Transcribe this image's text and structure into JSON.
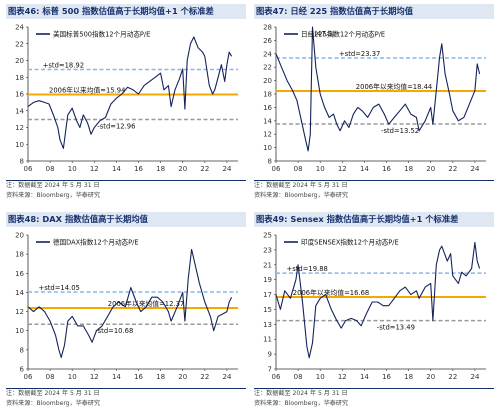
{
  "colors": {
    "series": "#14245a",
    "long_mean": "#f5a800",
    "plus_std": "#86b7e8",
    "minus_std": "#9a9a9a",
    "header_bg": "#dfe7f3",
    "header_text": "#17306d",
    "axis": "#333333"
  },
  "panels": [
    {
      "title": "图表46:  标普 500 指数估值高于长期均值+1 个标准差",
      "note": "注：数据截至 2024 年 5 月 31 日",
      "source": "资料来源：Bloomberg，华泰研究",
      "chart_data": {
        "type": "line",
        "legend": "美国标普500指数12个月动态P/E",
        "x_ticks": [
          "06",
          "08",
          "10",
          "12",
          "14",
          "16",
          "18",
          "20",
          "22",
          "24"
        ],
        "x_range": [
          2006,
          2025
        ],
        "ylim": [
          8,
          24
        ],
        "y_ticks": [
          8,
          10,
          12,
          14,
          16,
          18,
          20,
          22,
          24
        ],
        "reference_lines": [
          {
            "kind": "plus_std",
            "value": 18.92,
            "label": "+std=18.92"
          },
          {
            "kind": "long_mean",
            "value": 15.94,
            "label": "2006年以来均值=15.94"
          },
          {
            "kind": "minus_std",
            "value": 12.96,
            "label": "-std=12.96"
          }
        ],
        "annotations": [],
        "series": [
          {
            "x": [
              2006.0,
              2006.5,
              2007.0,
              2007.5,
              2007.9,
              2008.3,
              2008.7,
              2008.9,
              2009.2,
              2009.6,
              2010.0,
              2010.4,
              2010.7,
              2011.0,
              2011.4,
              2011.7,
              2012.0,
              2012.5,
              2013.0,
              2013.5,
              2014.0,
              2014.5,
              2015.0,
              2015.5,
              2016.0,
              2016.5,
              2017.0,
              2017.5,
              2018.0,
              2018.3,
              2018.7,
              2018.95,
              2019.3,
              2019.7,
              2020.0,
              2020.2,
              2020.4,
              2020.7,
              2021.0,
              2021.4,
              2021.8,
              2022.0,
              2022.4,
              2022.7,
              2022.9,
              2023.2,
              2023.5,
              2023.8,
              2024.0,
              2024.2,
              2024.42
            ],
            "y": [
              14.5,
              15.0,
              15.2,
              15.0,
              14.8,
              13.5,
              12.0,
              10.5,
              9.5,
              13.5,
              14.3,
              12.8,
              12.0,
              13.5,
              12.5,
              11.2,
              12.0,
              12.8,
              13.2,
              14.8,
              15.5,
              16.0,
              16.8,
              16.5,
              16.0,
              17.0,
              17.5,
              18.0,
              18.5,
              16.5,
              17.0,
              14.5,
              16.5,
              17.8,
              19.0,
              14.2,
              20.0,
              22.0,
              22.8,
              21.5,
              21.0,
              20.5,
              17.0,
              16.0,
              16.5,
              18.0,
              19.5,
              17.5,
              19.5,
              21.0,
              20.5
            ]
          }
        ]
      }
    },
    {
      "title": "图表47:  日经 225 指数估值高于长期均值",
      "note": "注：数据截至 2024 年 5 月 31 日",
      "source": "资料来源：Bloomberg，华泰研究",
      "chart_data": {
        "type": "line",
        "legend": "日经225指数12个月动态P/E",
        "x_ticks": [
          "06",
          "08",
          "10",
          "12",
          "14",
          "16",
          "18",
          "20",
          "22",
          "24"
        ],
        "x_range": [
          2006,
          2025
        ],
        "ylim": [
          8,
          28
        ],
        "y_ticks": [
          8,
          10,
          12,
          14,
          16,
          18,
          20,
          22,
          24,
          26,
          28
        ],
        "reference_lines": [
          {
            "kind": "plus_std",
            "value": 23.37,
            "label": "+std=23.37"
          },
          {
            "kind": "long_mean",
            "value": 18.44,
            "label": "2006年以来均值=18.44"
          },
          {
            "kind": "minus_std",
            "value": 13.52,
            "label": "-std=13.52"
          }
        ],
        "annotations": [
          {
            "text": "(47.3)",
            "x": 2009.2
          }
        ],
        "series": [
          {
            "x": [
              2006.0,
              2006.5,
              2007.0,
              2007.5,
              2007.9,
              2008.3,
              2008.7,
              2008.9,
              2009.1,
              2009.3,
              2009.6,
              2010.0,
              2010.4,
              2010.8,
              2011.2,
              2011.5,
              2011.8,
              2012.2,
              2012.6,
              2013.0,
              2013.4,
              2013.8,
              2014.3,
              2014.8,
              2015.3,
              2015.8,
              2016.2,
              2016.7,
              2017.2,
              2017.7,
              2018.2,
              2018.7,
              2018.95,
              2019.5,
              2020.0,
              2020.2,
              2020.5,
              2020.8,
              2021.0,
              2021.3,
              2021.7,
              2022.0,
              2022.5,
              2023.0,
              2023.5,
              2024.0,
              2024.2,
              2024.42
            ],
            "y": [
              24.0,
              22.0,
              20.0,
              18.5,
              17.0,
              14.0,
              11.0,
              9.5,
              12.0,
              28.0,
              22.0,
              18.0,
              16.0,
              14.5,
              15.0,
              13.5,
              12.5,
              14.0,
              13.0,
              15.0,
              16.0,
              15.5,
              14.5,
              16.0,
              16.5,
              15.0,
              13.5,
              14.5,
              15.5,
              16.5,
              15.0,
              14.5,
              12.5,
              14.0,
              16.0,
              13.5,
              18.5,
              23.5,
              25.5,
              21.0,
              18.0,
              15.5,
              14.0,
              14.5,
              16.5,
              18.5,
              22.5,
              21.0
            ]
          }
        ]
      }
    },
    {
      "title": "图表48:  DAX 指数估值高于长期均值",
      "note": "注：数据截至 2024 年 5 月 31 日",
      "source": "资料来源：Bloomberg，华泰研究",
      "chart_data": {
        "type": "line",
        "legend": "德国DAX指数12个月动态P/E",
        "x_ticks": [
          "06",
          "08",
          "10",
          "12",
          "14",
          "16",
          "18",
          "20",
          "22",
          "24"
        ],
        "x_range": [
          2006,
          2025
        ],
        "ylim": [
          6,
          20
        ],
        "y_ticks": [
          6,
          8,
          10,
          12,
          14,
          16,
          18,
          20
        ],
        "reference_lines": [
          {
            "kind": "plus_std",
            "value": 14.05,
            "label": "+std=14.05"
          },
          {
            "kind": "long_mean",
            "value": 12.37,
            "label": "2006年以来均值=12.37"
          },
          {
            "kind": "minus_std",
            "value": 10.68,
            "label": "-std=10.68"
          }
        ],
        "annotations": [],
        "series": [
          {
            "x": [
              2006.0,
              2006.5,
              2007.0,
              2007.5,
              2008.0,
              2008.5,
              2008.8,
              2009.0,
              2009.3,
              2009.6,
              2010.0,
              2010.5,
              2011.0,
              2011.5,
              2011.8,
              2012.2,
              2012.7,
              2013.2,
              2013.7,
              2014.2,
              2014.8,
              2015.3,
              2015.8,
              2016.2,
              2016.7,
              2017.2,
              2017.7,
              2018.2,
              2018.7,
              2018.95,
              2019.5,
              2020.0,
              2020.2,
              2020.5,
              2020.8,
              2021.0,
              2021.5,
              2022.0,
              2022.5,
              2022.8,
              2023.2,
              2023.7,
              2024.0,
              2024.2,
              2024.42
            ],
            "y": [
              12.5,
              12.0,
              12.5,
              12.0,
              11.0,
              9.5,
              8.0,
              7.2,
              8.5,
              11.0,
              11.5,
              10.5,
              10.5,
              9.5,
              8.8,
              10.0,
              10.5,
              11.5,
              12.5,
              13.0,
              12.5,
              14.5,
              13.0,
              12.0,
              12.5,
              13.5,
              13.5,
              13.0,
              12.0,
              11.0,
              12.5,
              14.0,
              11.0,
              15.5,
              18.5,
              17.5,
              15.0,
              13.0,
              11.5,
              10.0,
              11.5,
              11.8,
              12.0,
              13.0,
              13.5
            ]
          }
        ]
      }
    },
    {
      "title": "图表49:  Sensex 指数估值高于长期均值+1 个标准差",
      "note": "注：数据截至 2024 年 5 月 31 日",
      "source": "资料来源：Bloomberg，华泰研究",
      "chart_data": {
        "type": "line",
        "legend": "印度SENSEX指数12个月动态P/E",
        "x_ticks": [
          "06",
          "08",
          "10",
          "12",
          "14",
          "16",
          "18",
          "20",
          "22",
          "24"
        ],
        "x_range": [
          2006,
          2025
        ],
        "ylim": [
          7,
          25
        ],
        "y_ticks": [
          7,
          9,
          11,
          13,
          15,
          17,
          19,
          21,
          23,
          25
        ],
        "reference_lines": [
          {
            "kind": "plus_std",
            "value": 19.88,
            "label": "+std=19.88"
          },
          {
            "kind": "long_mean",
            "value": 16.68,
            "label": "2006年以来均值=16.68"
          },
          {
            "kind": "minus_std",
            "value": 13.49,
            "label": "-std=13.49"
          }
        ],
        "annotations": [],
        "series": [
          {
            "x": [
              2006.0,
              2006.4,
              2006.8,
              2007.3,
              2007.8,
              2008.0,
              2008.4,
              2008.8,
              2009.0,
              2009.3,
              2009.6,
              2010.0,
              2010.5,
              2011.0,
              2011.5,
              2011.9,
              2012.3,
              2012.8,
              2013.3,
              2013.7,
              2014.2,
              2014.7,
              2015.2,
              2015.7,
              2016.2,
              2016.7,
              2017.2,
              2017.7,
              2018.2,
              2018.7,
              2018.95,
              2019.5,
              2020.0,
              2020.2,
              2020.5,
              2020.8,
              2021.0,
              2021.5,
              2021.8,
              2022.0,
              2022.5,
              2022.8,
              2023.2,
              2023.7,
              2024.0,
              2024.2,
              2024.42
            ],
            "y": [
              17.0,
              15.0,
              17.5,
              16.5,
              19.0,
              21.0,
              16.0,
              10.0,
              8.5,
              10.5,
              15.5,
              16.5,
              17.0,
              15.0,
              13.5,
              12.5,
              13.5,
              13.8,
              13.5,
              12.8,
              14.5,
              16.0,
              16.0,
              15.5,
              15.5,
              16.5,
              17.5,
              18.0,
              17.0,
              17.5,
              16.5,
              18.0,
              18.5,
              13.5,
              21.0,
              23.0,
              23.5,
              21.5,
              22.5,
              19.5,
              18.5,
              20.0,
              19.5,
              20.5,
              24.0,
              21.5,
              20.5
            ]
          }
        ]
      }
    }
  ]
}
